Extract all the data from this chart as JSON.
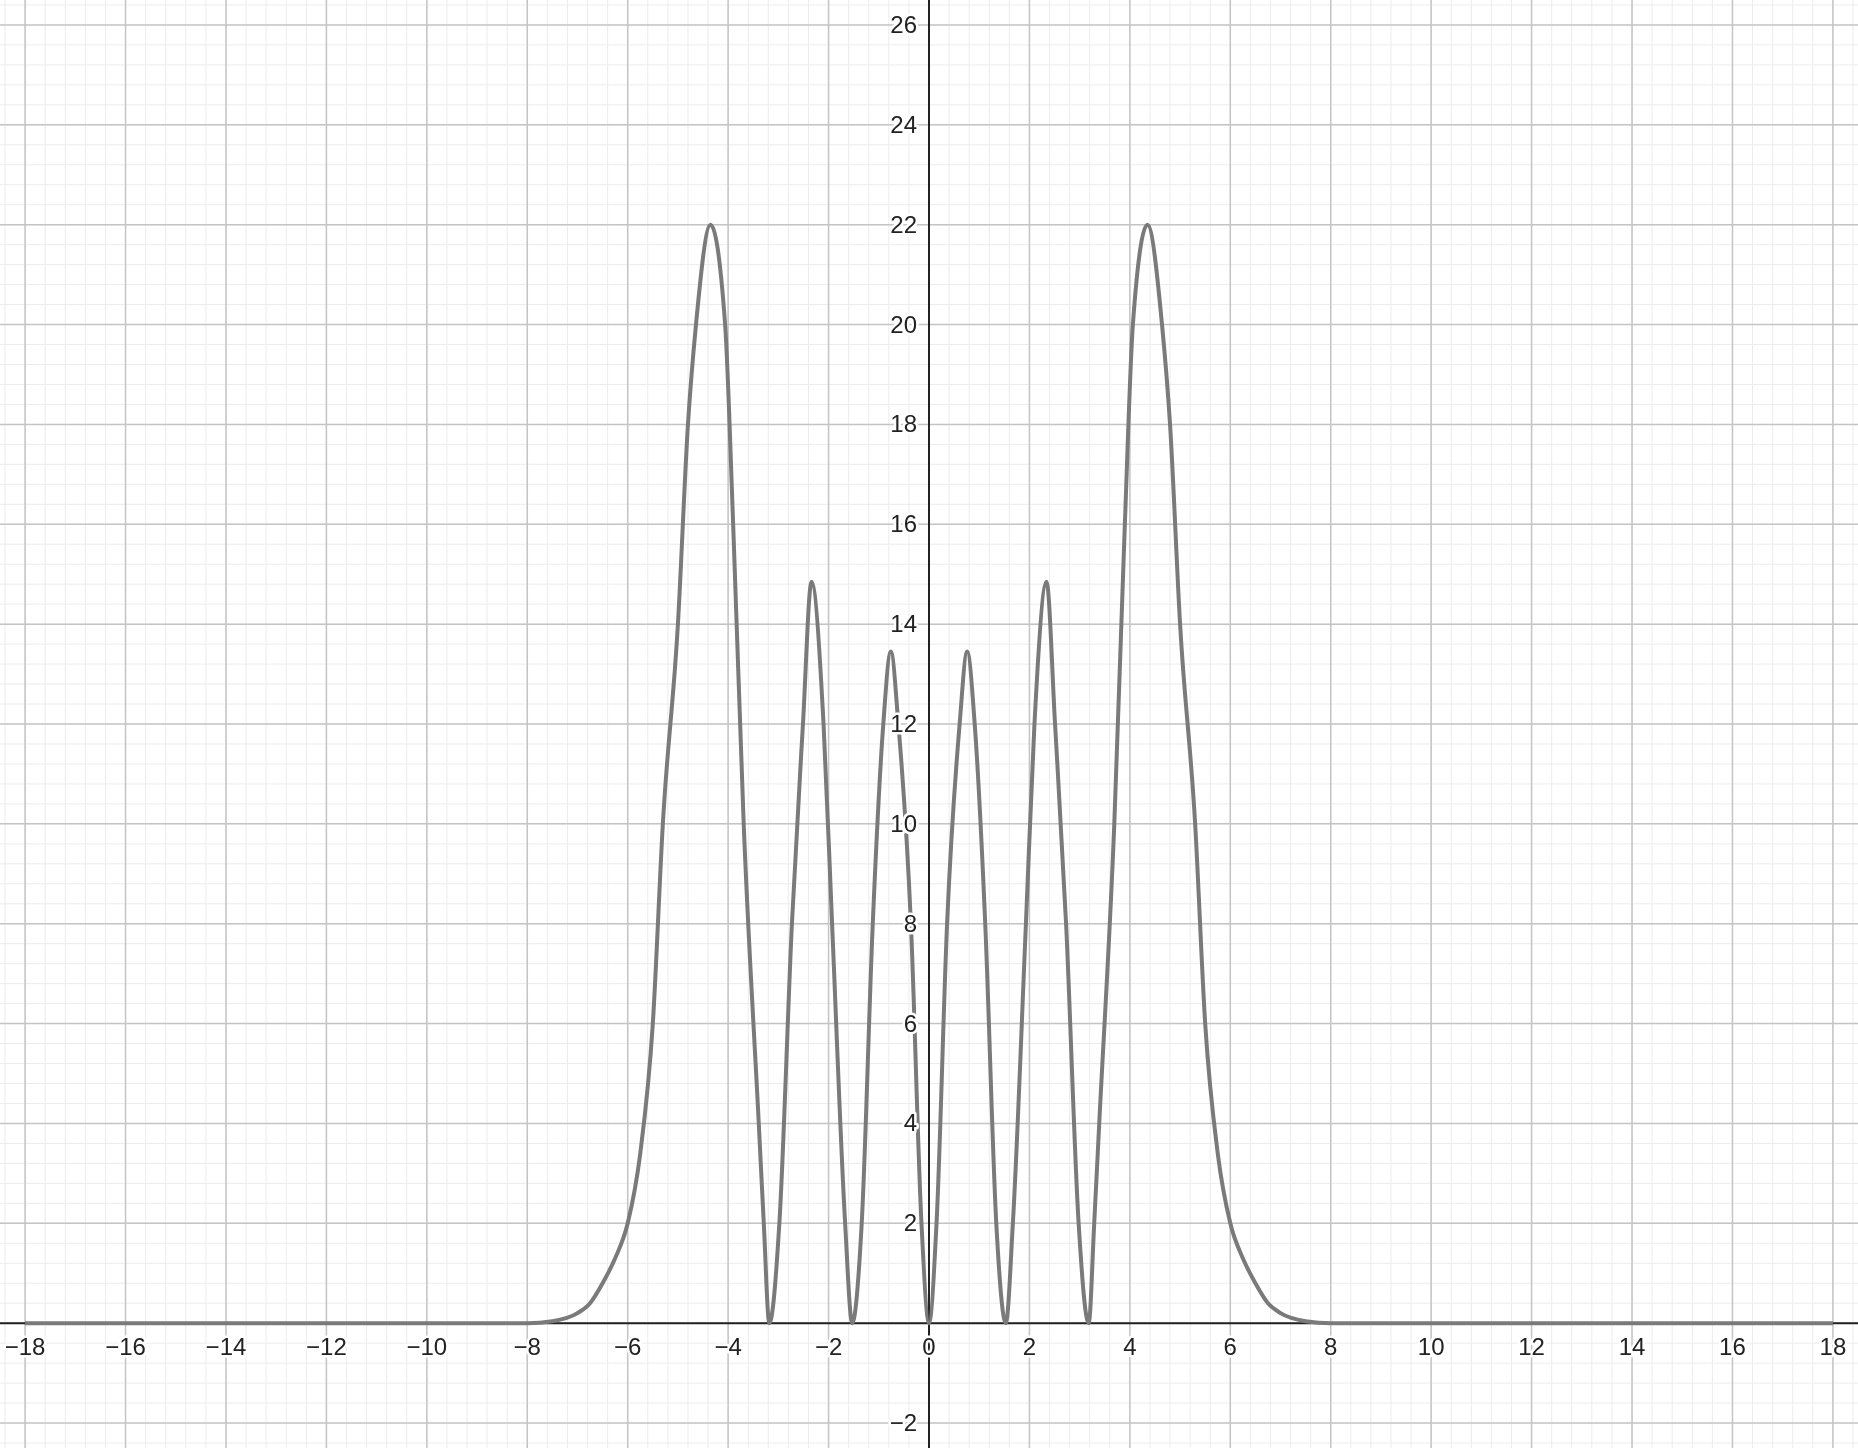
{
  "chart_data": {
    "type": "line",
    "grid": true,
    "xlim": [
      -18.5,
      18.5
    ],
    "ylim": [
      -2.5,
      26.5
    ],
    "xticks": [
      {
        "value": -18,
        "label": "−18"
      },
      {
        "value": -16,
        "label": "−16"
      },
      {
        "value": -14,
        "label": "−14"
      },
      {
        "value": -12,
        "label": "−12"
      },
      {
        "value": -10,
        "label": "−10"
      },
      {
        "value": -8,
        "label": "−8"
      },
      {
        "value": -6,
        "label": "−6"
      },
      {
        "value": -4,
        "label": "−4"
      },
      {
        "value": -2,
        "label": "−2"
      },
      0,
      2,
      4,
      6,
      8,
      10,
      12,
      14,
      16,
      18
    ],
    "yticks": [
      {
        "value": -2,
        "label": "−2"
      },
      {
        "value": 0,
        "label": null
      },
      2,
      4,
      6,
      8,
      10,
      12,
      14,
      16,
      18,
      20,
      22,
      24,
      26
    ],
    "series": [
      {
        "color": "#7a7a7a",
        "marker": "none",
        "line_style": "solid",
        "x": [
          -18,
          -8,
          -7.5,
          -7,
          -6.75,
          -6.5,
          -6.25,
          -6,
          -5.75,
          -5.5,
          -5.3,
          -5,
          -4.8,
          -4.64,
          -4.35,
          -4.06,
          -3.9,
          -3.69,
          -3.39,
          -3.29,
          -3.18,
          -2.98,
          -2.73,
          -2.51,
          -2.34,
          -2.1,
          -1.93,
          -1.67,
          -1.53,
          -1.34,
          -1.12,
          -0.91,
          -0.76,
          -0.61,
          -0.36,
          -0.15,
          0,
          0.15,
          0.36,
          0.61,
          0.76,
          0.91,
          1.12,
          1.34,
          1.53,
          1.67,
          1.93,
          2.1,
          2.34,
          2.51,
          2.73,
          2.98,
          3.18,
          3.29,
          3.39,
          3.69,
          3.9,
          4.06,
          4.35,
          4.64,
          4.8,
          5,
          5.3,
          5.5,
          5.75,
          6,
          6.25,
          6.5,
          6.75,
          7,
          7.5,
          8,
          18
        ],
        "values": [
          0,
          0,
          0.04,
          0.2,
          0.4,
          0.8,
          1.3,
          2,
          3.4,
          6,
          10,
          14,
          18,
          20,
          22,
          20,
          16,
          10,
          4,
          2,
          0,
          2,
          8,
          12,
          14.85,
          12,
          8,
          2,
          0,
          2,
          8,
          12,
          13.45,
          12,
          8,
          2,
          0,
          2,
          8,
          12,
          13.45,
          12,
          8,
          2,
          0,
          2,
          8,
          12,
          14.85,
          12,
          8,
          2,
          0,
          2,
          4,
          10,
          16,
          20,
          22,
          20,
          18,
          14,
          10,
          6,
          3.4,
          2,
          1.3,
          0.8,
          0.4,
          0.2,
          0.04,
          0,
          0
        ]
      }
    ]
  }
}
